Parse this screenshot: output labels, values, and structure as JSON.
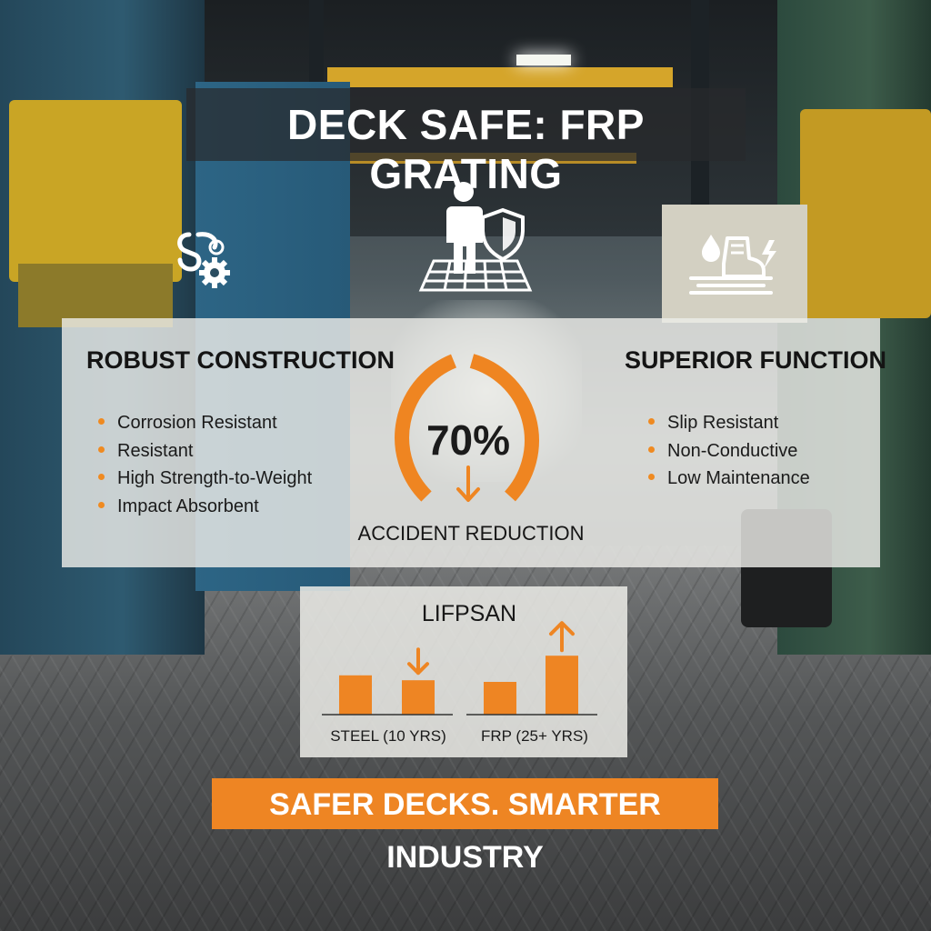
{
  "title": "DECK SAFE: FRP GRATING",
  "colors": {
    "accent": "#ee8523",
    "text_dark": "#141414",
    "panel": "#ececE8",
    "title_text": "#ffffff"
  },
  "icons": {
    "left": "gears-cog-icon",
    "center": "worker-shield-on-grating-icon",
    "right": "boot-water-lightning-icon"
  },
  "robust": {
    "heading": "ROBUST CONSTRUCTION",
    "items": [
      "Corrosion Resistant",
      "Resistant",
      "High Strength-to-Weight",
      "Impact Absorbent"
    ]
  },
  "superior": {
    "heading": "SUPERIOR FUNCTION",
    "items": [
      "Slip Resistant",
      "Non-Conductive",
      "Low Maintenance"
    ]
  },
  "gauge": {
    "value_text": "70%",
    "value": 0.7,
    "label": "ACCIDENT REDUCTION",
    "trend_icon": "arrow-down-icon"
  },
  "chart_data": {
    "type": "bar",
    "title": "LIFPSAN",
    "groups": [
      {
        "label": "STEEL (10 YRS)",
        "values": [
          48,
          42
        ],
        "trend": "down"
      },
      {
        "label": "FRP (25+ YRS)",
        "values": [
          40,
          72
        ],
        "trend": "up"
      }
    ],
    "ylim": [
      0,
      80
    ]
  },
  "banner": "SAFER DECKS. SMARTER INDUSTRY"
}
